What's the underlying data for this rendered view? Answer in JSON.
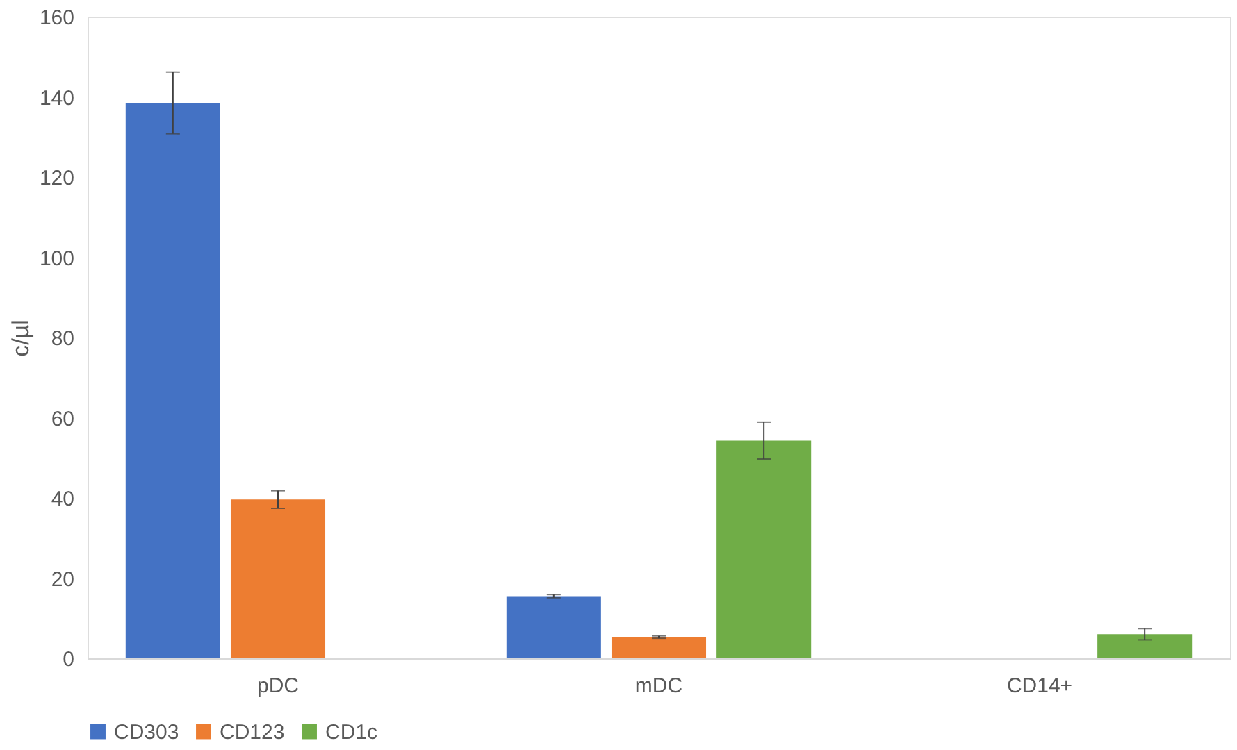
{
  "chart_data": {
    "type": "bar",
    "ylabel": "c/µl",
    "categories": [
      "pDC",
      "mDC",
      "CD14+"
    ],
    "series": [
      {
        "name": "CD303",
        "color": "#4472c4",
        "values": [
          138.5,
          15.5,
          0
        ],
        "errors": [
          7.7,
          0.4,
          null
        ]
      },
      {
        "name": "CD123",
        "color": "#ed7d31",
        "values": [
          39.6,
          5.3,
          0
        ],
        "errors": [
          2.2,
          0.3,
          null
        ]
      },
      {
        "name": "CD1c",
        "color": "#70ad47",
        "values": [
          0,
          54.3,
          6.0
        ],
        "errors": [
          null,
          4.6,
          1.4
        ]
      }
    ],
    "ylim": [
      0,
      160
    ],
    "yticks": [
      0,
      20,
      40,
      60,
      80,
      100,
      120,
      140,
      160
    ],
    "grid": false,
    "legend": "bottom"
  }
}
